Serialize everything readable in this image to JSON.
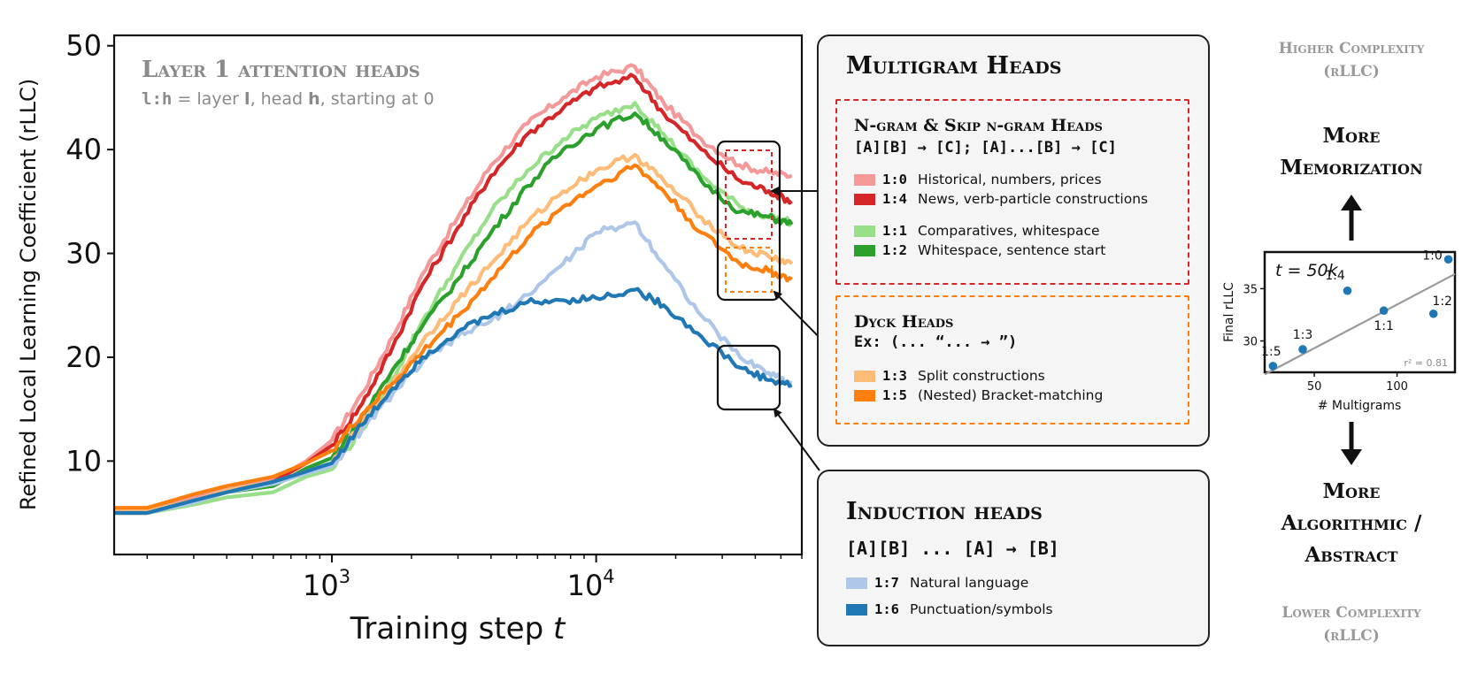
{
  "chart_data": [
    {
      "id": "main",
      "type": "line",
      "title": "Layer 1 attention heads",
      "subtitle_parts": {
        "code": "l:h",
        "text1": " = layer ",
        "b1": "l",
        "text2": ", head ",
        "b2": "h",
        "text3": ", starting at 0"
      },
      "xlabel_text": "Training step ",
      "xlabel_var": "t",
      "ylabel": "Refined Local Learning Coefficient (rLLC)",
      "xscale": "log",
      "xlim": [
        150,
        60000
      ],
      "ylim": [
        1,
        51
      ],
      "yticks": [
        10,
        20,
        30,
        40,
        50
      ],
      "xticks_major": [
        {
          "base": "10",
          "exp": "3",
          "value": 1000
        },
        {
          "base": "10",
          "exp": "4",
          "value": 10000
        }
      ],
      "x": [
        150,
        200,
        300,
        400,
        600,
        800,
        1000,
        1300,
        1700,
        2200,
        3000,
        4000,
        5500,
        7500,
        10000,
        14000,
        18000,
        25000,
        35000,
        45000,
        55000
      ],
      "series": [
        {
          "name": "1:0",
          "color": "#f4989a",
          "values": [
            5.2,
            5.2,
            6.5,
            7.4,
            8.2,
            10,
            12,
            16.5,
            22,
            28,
            33.5,
            38.5,
            42.5,
            45,
            47,
            48,
            44.5,
            41,
            38.5,
            37.8,
            37.5
          ]
        },
        {
          "name": "1:4",
          "color": "#d62728",
          "values": [
            5.0,
            5.0,
            6.0,
            7.0,
            8.0,
            9.8,
            11.5,
            15.5,
            21,
            27,
            32.5,
            37.5,
            41.5,
            44,
            46,
            47,
            43.5,
            40,
            37,
            36,
            35
          ]
        },
        {
          "name": "1:1",
          "color": "#98df8a",
          "values": [
            5.0,
            5.0,
            5.8,
            6.5,
            7.0,
            8.5,
            9.2,
            13,
            18,
            23.5,
            29,
            34,
            38,
            41,
            43,
            44.5,
            41.5,
            37.5,
            34.5,
            33.5,
            33
          ]
        },
        {
          "name": "1:2",
          "color": "#2ca02c",
          "values": [
            5.2,
            5.2,
            6.2,
            7.0,
            7.6,
            9.3,
            10.3,
            14.2,
            18.8,
            23,
            27.5,
            32,
            36.5,
            40,
            42,
            43.5,
            41,
            37,
            34,
            33.5,
            32.8
          ]
        },
        {
          "name": "1:3",
          "color": "#ffbb78",
          "values": [
            5.2,
            5.2,
            6.2,
            7.2,
            8.0,
            9.0,
            9.8,
            13.5,
            17.5,
            21.5,
            25.5,
            29,
            33,
            36,
            38,
            39.5,
            37,
            33.5,
            30.5,
            29.7,
            29
          ]
        },
        {
          "name": "1:5",
          "color": "#ff7f0e",
          "values": [
            5.5,
            5.5,
            6.8,
            7.6,
            8.5,
            9.8,
            11,
            14.5,
            17.5,
            20.5,
            24,
            27.5,
            31.5,
            34.5,
            36.5,
            38.5,
            36,
            32,
            29,
            28.3,
            27.5
          ]
        },
        {
          "name": "1:7",
          "color": "#aec7e8",
          "values": [
            5.0,
            5.0,
            6.0,
            7.0,
            7.8,
            8.8,
            9.5,
            13,
            16.5,
            19.5,
            22,
            23.5,
            26,
            29,
            32,
            33,
            29,
            24,
            20,
            18.5,
            17.5
          ]
        },
        {
          "name": "1:6",
          "color": "#1f77b4",
          "values": [
            5.0,
            5.0,
            6.2,
            7.0,
            8.0,
            9.0,
            9.8,
            13.5,
            17.0,
            20.0,
            22.5,
            24,
            25.3,
            25.5,
            25.7,
            26.5,
            25,
            22,
            19,
            17.8,
            17.3
          ]
        }
      ]
    },
    {
      "id": "inset",
      "type": "scatter",
      "title_var": "t",
      "title_rest": " = 50k",
      "xlabel": "# Multigrams",
      "ylabel": "Final  rLLC",
      "xlim": [
        20,
        135
      ],
      "ylim": [
        27,
        38.5
      ],
      "xticks": [
        50,
        100
      ],
      "yticks": [
        30,
        35
      ],
      "r2_label": "r² = 0.81",
      "fit": {
        "x": [
          20,
          135
        ],
        "y": [
          26.8,
          36.4
        ]
      },
      "points": [
        {
          "label": "1:5",
          "x": 25,
          "y": 27.6
        },
        {
          "label": "1:3",
          "x": 43,
          "y": 29.2
        },
        {
          "label": "1:1",
          "x": 92,
          "y": 32.9
        },
        {
          "label": "1:4",
          "x": 70,
          "y": 34.8
        },
        {
          "label": "1:2",
          "x": 122,
          "y": 32.6
        },
        {
          "label": "1:0",
          "x": 131,
          "y": 37.8
        }
      ]
    }
  ],
  "multigram": {
    "title": "Multigram Heads",
    "ngram": {
      "title": "N-gram & Skip n-gram Heads",
      "pattern": "[A][B] → [C]; [A]...[B] → [C]",
      "color": "#d62728",
      "items": [
        {
          "id": "1:0",
          "desc": "Historical, numbers, prices",
          "color": "#f4989a"
        },
        {
          "id": "1:4",
          "desc": "News, verb-particle constructions",
          "color": "#d62728"
        },
        {
          "id": "1:1",
          "desc": "Comparatives, whitespace",
          "color": "#98df8a"
        },
        {
          "id": "1:2",
          "desc": "Whitespace, sentence start",
          "color": "#2ca02c"
        }
      ]
    },
    "dyck": {
      "title": "Dyck Heads",
      "pattern": "Ex: (... “... → ”)",
      "color": "#ff7f0e",
      "items": [
        {
          "id": "1:3",
          "desc": "Split constructions",
          "color": "#ffbb78"
        },
        {
          "id": "1:5",
          "desc": "(Nested) Bracket-matching",
          "color": "#ff7f0e"
        }
      ]
    }
  },
  "induction": {
    "title": "Induction heads",
    "pattern": "[A][B] ... [A] → [B]",
    "items": [
      {
        "id": "1:7",
        "desc": "Natural language",
        "color": "#aec7e8"
      },
      {
        "id": "1:6",
        "desc": "Punctuation/symbols",
        "color": "#1f77b4"
      }
    ]
  },
  "right": {
    "higher": [
      "Higher Complexity",
      "(rLLC)"
    ],
    "more_mem": [
      "More",
      "Memorization"
    ],
    "more_alg": [
      "More",
      "Algorithmic /",
      "Abstract"
    ],
    "lower": [
      "Lower Complexity",
      "(rLLC)"
    ]
  }
}
